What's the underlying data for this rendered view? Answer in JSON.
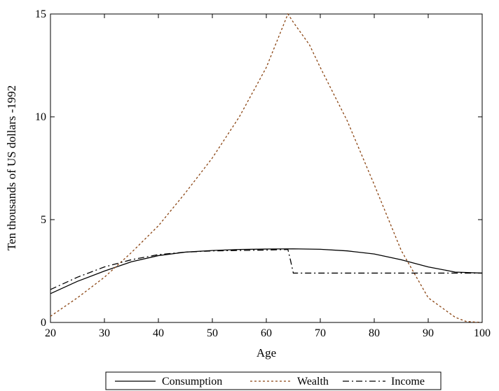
{
  "chart_data": {
    "type": "line",
    "title": "",
    "xlabel": "Age",
    "ylabel": "Ten thousands of US dollars -1992",
    "xlim": [
      20,
      100
    ],
    "ylim": [
      0,
      15
    ],
    "xticks": [
      20,
      30,
      40,
      50,
      60,
      70,
      80,
      90,
      100
    ],
    "yticks": [
      0,
      5,
      10,
      15
    ],
    "grid": false,
    "legend_position": "bottom",
    "series": [
      {
        "name": "Consumption",
        "color": "#000000",
        "dash": "solid",
        "x": [
          20,
          25,
          30,
          35,
          40,
          45,
          50,
          55,
          60,
          65,
          70,
          75,
          80,
          85,
          90,
          95,
          100
        ],
        "y": [
          1.4,
          2.0,
          2.5,
          2.95,
          3.25,
          3.42,
          3.5,
          3.55,
          3.57,
          3.58,
          3.56,
          3.48,
          3.33,
          3.05,
          2.7,
          2.45,
          2.4
        ]
      },
      {
        "name": "Wealth",
        "color": "#8b4513",
        "dash": "dotted",
        "x": [
          20,
          25,
          30,
          35,
          40,
          45,
          50,
          55,
          60,
          64,
          65,
          68,
          70,
          75,
          80,
          85,
          90,
          95,
          97,
          100
        ],
        "y": [
          0.3,
          1.2,
          2.2,
          3.4,
          4.7,
          6.3,
          8.0,
          10.0,
          12.4,
          15.0,
          14.6,
          13.5,
          12.4,
          9.8,
          6.7,
          3.5,
          1.2,
          0.25,
          0.05,
          0.0
        ]
      },
      {
        "name": "Income",
        "color": "#000000",
        "dash": "dashdot",
        "x": [
          20,
          25,
          30,
          35,
          40,
          45,
          50,
          55,
          60,
          64,
          64.5,
          65,
          70,
          80,
          90,
          100
        ],
        "y": [
          1.6,
          2.2,
          2.7,
          3.05,
          3.3,
          3.42,
          3.48,
          3.5,
          3.52,
          3.55,
          3.0,
          2.4,
          2.4,
          2.4,
          2.4,
          2.4
        ]
      }
    ]
  }
}
